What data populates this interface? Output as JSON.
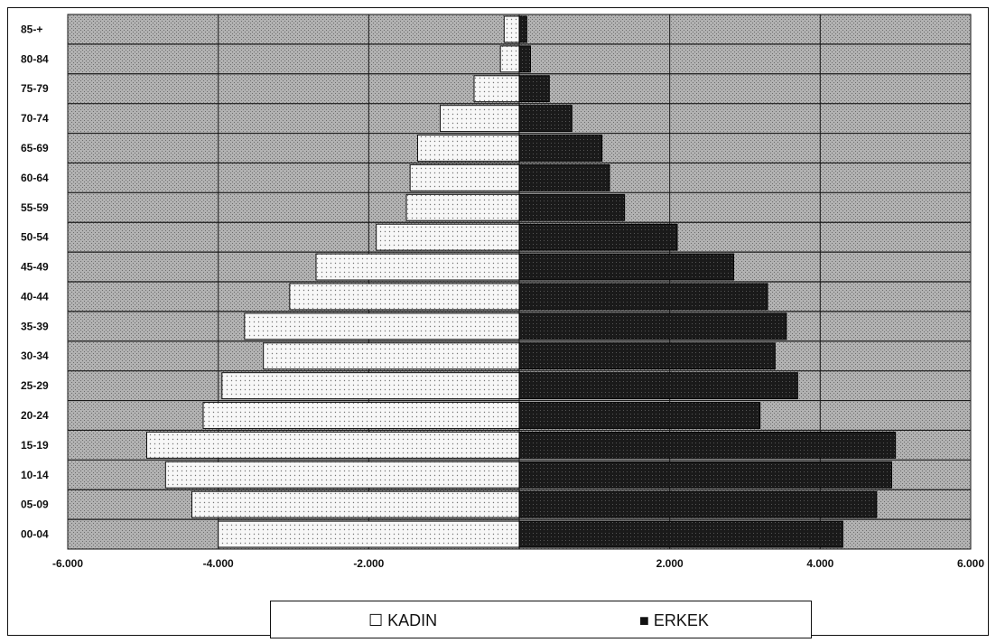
{
  "chart_data": {
    "type": "bar",
    "orientation": "horizontal",
    "title": "",
    "xlabel": "",
    "ylabel": "",
    "xlim": [
      -6000,
      6000
    ],
    "x_ticks": [
      "-6.000",
      "-4.000",
      "-2.000",
      "2.000",
      "4.000",
      "6.000"
    ],
    "x_tick_values": [
      -6000,
      -4000,
      -2000,
      2000,
      4000,
      6000
    ],
    "categories": [
      "00-04",
      "05-09",
      "10-14",
      "15-19",
      "20-24",
      "25-29",
      "30-34",
      "35-39",
      "40-44",
      "45-49",
      "50-54",
      "55-59",
      "60-64",
      "65-69",
      "70-74",
      "75-79",
      "80-84",
      "85-+"
    ],
    "series": [
      {
        "name": "KADIN",
        "values": [
          -4000,
          -4350,
          -4700,
          -4950,
          -4200,
          -3950,
          -3400,
          -3650,
          -3050,
          -2700,
          -1900,
          -1500,
          -1450,
          -1350,
          -1050,
          -600,
          -250,
          -200
        ],
        "color": "#f6f6f6"
      },
      {
        "name": "ERKEK",
        "values": [
          4300,
          4750,
          4950,
          5000,
          3200,
          3700,
          3400,
          3550,
          3300,
          2850,
          2100,
          1400,
          1200,
          1100,
          700,
          400,
          150,
          100
        ],
        "color": "#222222"
      }
    ],
    "grid": true,
    "legend": "bottom"
  },
  "legend": {
    "female_label": "☐ KADIN",
    "male_label": "■ ERKEK"
  },
  "colors": {
    "background_hatch": "#9a9a9a",
    "female_fill": "#f6f6f6",
    "male_fill": "#1c1c1c"
  }
}
